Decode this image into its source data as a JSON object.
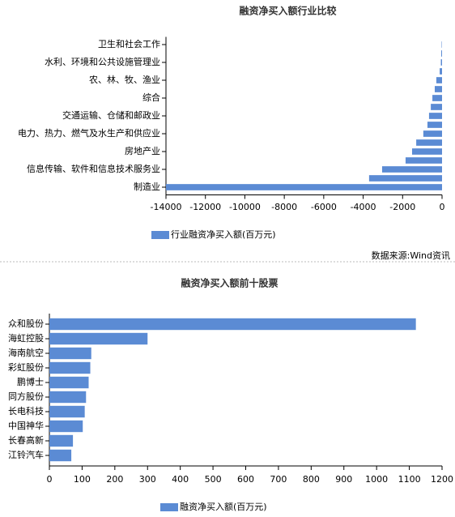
{
  "chart_data": [
    {
      "type": "barh",
      "title": "融资净买入额行业比较",
      "categories": [
        "卫生和社会工作",
        null,
        "水利、环境和公共设施管理业",
        null,
        "农、林、牧、渔业",
        null,
        "综合",
        null,
        "交通运输、仓储和邮政业",
        null,
        "电力、热力、燃气及水生产和供应业",
        null,
        "房地产业",
        null,
        "信息传输、软件和信息技术服务业",
        null,
        "制造业"
      ],
      "series": [
        {
          "name": "行业融资净买入额(百万元)",
          "color": "#5b8bd4",
          "values": [
            -20,
            -40,
            -60,
            -120,
            -290,
            -370,
            -490,
            -570,
            -660,
            -740,
            -950,
            -1310,
            -1520,
            -1850,
            -3040,
            -3700,
            -14000
          ]
        }
      ],
      "xlim": [
        -14000,
        0
      ],
      "xticks": [
        -14000,
        -12000,
        -10000,
        -8000,
        -6000,
        -4000,
        -2000,
        0
      ]
    },
    {
      "type": "barh",
      "title": "融资净买入额前十股票",
      "categories": [
        "众和股份",
        "海虹控股",
        "海南航空",
        "彩虹股份",
        "鹏博士",
        "同方股份",
        "长电科技",
        "中国神华",
        "长春高新",
        "江铃汽车"
      ],
      "series": [
        {
          "name": "融资净买入额(百万元)",
          "color": "#5b8bd4",
          "values": [
            1120,
            300,
            128,
            125,
            120,
            112,
            108,
            102,
            72,
            67
          ]
        }
      ],
      "xlim": [
        0,
        1200
      ],
      "xticks": [
        0,
        100,
        200,
        300,
        400,
        500,
        600,
        700,
        800,
        900,
        1000,
        1100,
        1200
      ]
    }
  ],
  "source": "数据来源:Wind资讯"
}
